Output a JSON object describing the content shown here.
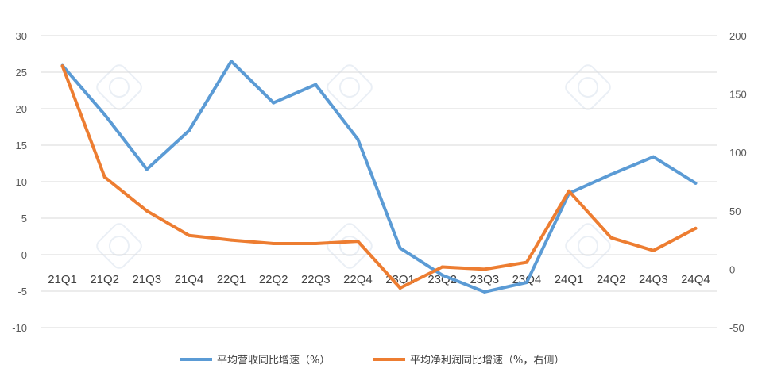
{
  "chart_data": {
    "type": "line",
    "title": "",
    "xlabel": "",
    "ylabel": "",
    "categories": [
      "21Q1",
      "21Q2",
      "21Q3",
      "21Q4",
      "22Q1",
      "22Q2",
      "22Q3",
      "22Q4",
      "23Q1",
      "23Q2",
      "23Q3",
      "23Q4",
      "24Q1",
      "24Q2",
      "24Q3",
      "24Q4"
    ],
    "y_left": {
      "min": -10,
      "max": 30,
      "step": 5,
      "ticks": [
        "30",
        "25",
        "20",
        "15",
        "10",
        "5",
        "0",
        "-5",
        "-10"
      ]
    },
    "y_right": {
      "min": -50,
      "max": 200,
      "step": 50,
      "ticks": [
        "200",
        "150",
        "100",
        "50",
        "0",
        "-50"
      ]
    },
    "series": [
      {
        "name": "平均营收同比增速（%）",
        "axis": "left",
        "color": "#5B9BD5",
        "values": [
          25.9,
          19.2,
          11.7,
          17.0,
          26.5,
          20.8,
          23.3,
          15.8,
          0.9,
          -2.8,
          -5.1,
          -3.8,
          8.4,
          11.0,
          13.4,
          9.8
        ]
      },
      {
        "name": "平均净利润同比增速（%，右侧）",
        "axis": "right",
        "color": "#ED7D31",
        "values": [
          174,
          79,
          50,
          29,
          25,
          22,
          22,
          24,
          -16,
          2,
          0,
          6,
          67,
          27,
          16,
          35
        ]
      }
    ],
    "legend": "bottom",
    "grid": true
  }
}
